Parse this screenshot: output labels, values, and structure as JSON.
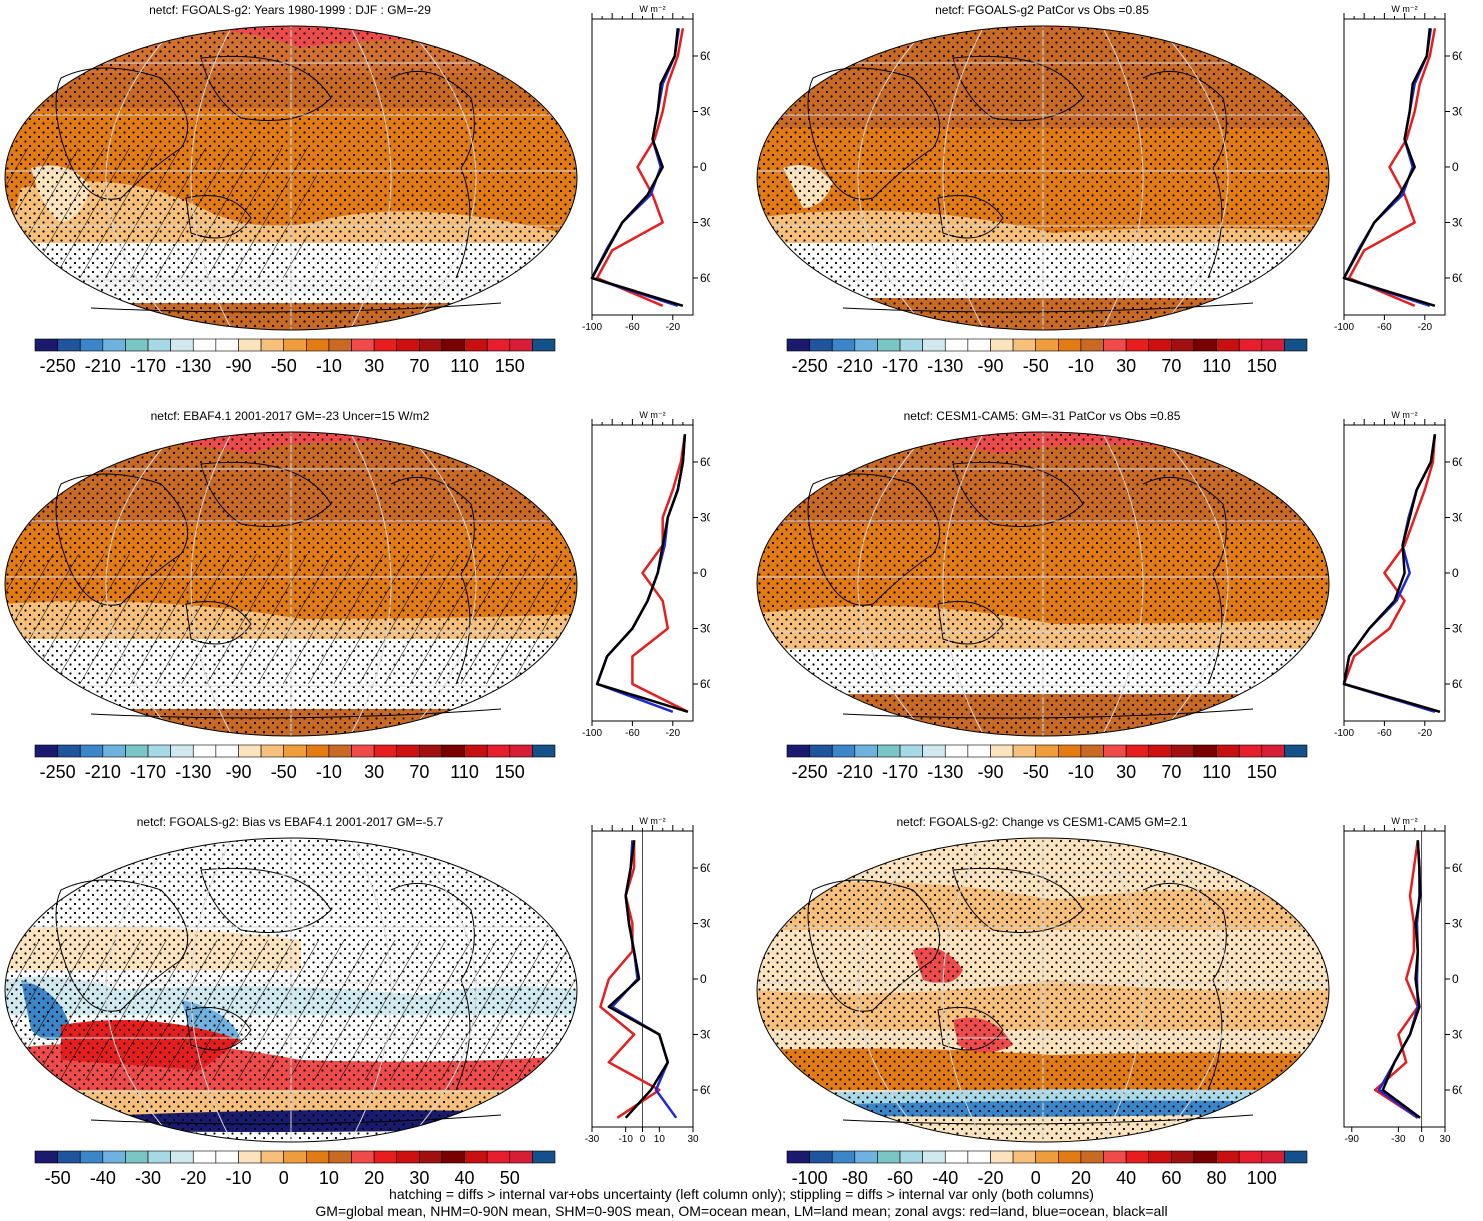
{
  "panels": [
    {
      "title": "netcf: FGOALS-g2: Years 1980-1999 : DJF : GM=-29"
    },
    {
      "title": "netcf: FGOALS-g2 PatCor vs Obs =0.85"
    },
    {
      "title": "netcf: EBAF4.1 2001-2017 GM=-23 Uncer=15 W/m2"
    },
    {
      "title": "netcf: CESM1-CAM5: GM=-31 PatCor vs Obs =0.85"
    },
    {
      "title": "netcf: FGOALS-g2: Bias vs EBAF4.1 2001-2017 GM=-5.7"
    },
    {
      "title": "netcf: FGOALS-g2: Change vs CESM1-CAM5 GM=2.1"
    }
  ],
  "colorbars": {
    "abs": {
      "labels": [
        "-250",
        "-210",
        "-170",
        "-130",
        "-90",
        "-50",
        "-10",
        "30",
        "70",
        "110",
        "150"
      ]
    },
    "bias": {
      "labels": [
        "-50",
        "-40",
        "-30",
        "-20",
        "-10",
        "0",
        "10",
        "20",
        "30",
        "40",
        "50"
      ]
    },
    "change": {
      "labels": [
        "-100",
        "-80",
        "-60",
        "-40",
        "-20",
        "0",
        "20",
        "40",
        "60",
        "80",
        "100"
      ]
    },
    "colors": [
      "#1a1a6e",
      "#20549c",
      "#3a86c8",
      "#6fb2e0",
      "#7ac6c4",
      "#a6d8e6",
      "#cfe9ef",
      "#ffffff",
      "#ffffff",
      "#fbe3bd",
      "#f6c07a",
      "#ef9d3c",
      "#e37b14",
      "#c96a24",
      "#f04a4a",
      "#e81e1e",
      "#d01010",
      "#a01010",
      "#7a0000",
      "#c81010",
      "#e81e2e",
      "#d81e36",
      "#14508a"
    ]
  },
  "zonal": {
    "unit": "W m⁻²",
    "lat_labels": [
      "60N",
      "30N",
      "0",
      "30S",
      "60S"
    ],
    "abs_ticks": [
      "-100",
      "-60",
      "-20"
    ],
    "bias_ticks": [
      "-30",
      "-10",
      "0",
      "10",
      "30"
    ],
    "change_ticks": [
      "-90",
      "-30",
      "0",
      "30"
    ]
  },
  "chart_data": [
    {
      "type": "heatmap",
      "title": "netcf: FGOALS-g2: Years 1980-1999 : DJF : GM=-29",
      "lat": [
        75,
        60,
        45,
        30,
        15,
        0,
        -15,
        -30,
        -45,
        -60,
        -75
      ],
      "zonal_all": [
        -15,
        -18,
        -32,
        -35,
        -40,
        -30,
        -45,
        -70,
        -85,
        -100,
        -10
      ],
      "zonal_land": [
        -10,
        -15,
        -25,
        -30,
        -38,
        -55,
        -40,
        -30,
        -80,
        -95,
        -30
      ],
      "zonal_ocean": [
        -14,
        -18,
        -30,
        -35,
        -40,
        -32,
        -42,
        -70,
        -86,
        -100,
        -15
      ],
      "x_range": [
        -100,
        0
      ]
    },
    {
      "type": "heatmap",
      "title": "netcf: FGOALS-g2 PatCor vs Obs =0.85",
      "lat": [
        75,
        60,
        45,
        30,
        15,
        0,
        -15,
        -30,
        -45,
        -60,
        -75
      ],
      "zonal_all": [
        -15,
        -18,
        -32,
        -35,
        -40,
        -30,
        -45,
        -70,
        -85,
        -100,
        -10
      ],
      "zonal_land": [
        -10,
        -15,
        -25,
        -30,
        -38,
        -55,
        -40,
        -30,
        -80,
        -95,
        -30
      ],
      "zonal_ocean": [
        -14,
        -18,
        -30,
        -35,
        -40,
        -32,
        -42,
        -70,
        -86,
        -100,
        -15
      ],
      "x_range": [
        -100,
        0
      ]
    },
    {
      "type": "heatmap",
      "title": "netcf: EBAF4.1 2001-2017 GM=-23 Uncer=15 W/m2",
      "lat": [
        75,
        60,
        45,
        30,
        15,
        0,
        -15,
        -30,
        -45,
        -60,
        -75
      ],
      "zonal_all": [
        -8,
        -10,
        -15,
        -25,
        -30,
        -35,
        -45,
        -60,
        -85,
        -95,
        -5
      ],
      "zonal_land": [
        -8,
        -12,
        -20,
        -30,
        -30,
        -50,
        -30,
        -25,
        -60,
        -60,
        -5
      ],
      "zonal_ocean": [
        -8,
        -10,
        -15,
        -25,
        -28,
        -35,
        -45,
        -60,
        -85,
        -95,
        -20
      ],
      "x_range": [
        -100,
        0
      ]
    },
    {
      "type": "heatmap",
      "title": "netcf: CESM1-CAM5: GM=-31 PatCor vs Obs =0.85",
      "lat": [
        75,
        60,
        45,
        30,
        15,
        0,
        -15,
        -30,
        -45,
        -60,
        -75
      ],
      "zonal_all": [
        -10,
        -14,
        -28,
        -35,
        -42,
        -40,
        -50,
        -75,
        -95,
        -100,
        -5
      ],
      "zonal_land": [
        -10,
        -12,
        -20,
        -30,
        -40,
        -60,
        -40,
        -55,
        -90,
        -100,
        -5
      ],
      "zonal_ocean": [
        -10,
        -14,
        -28,
        -36,
        -42,
        -35,
        -48,
        -75,
        -95,
        -100,
        -10
      ],
      "x_range": [
        -100,
        0
      ]
    },
    {
      "type": "heatmap",
      "title": "netcf: FGOALS-g2: Bias vs EBAF4.1 2001-2017 GM=-5.7",
      "lat": [
        75,
        60,
        45,
        30,
        15,
        0,
        -15,
        -30,
        -45,
        -60,
        -75
      ],
      "zonal_all": [
        -5,
        -7,
        -10,
        -8,
        -5,
        -2,
        -20,
        10,
        15,
        5,
        -10
      ],
      "zonal_land": [
        -5,
        -5,
        -10,
        -6,
        -6,
        -20,
        -25,
        -5,
        -20,
        10,
        -15
      ],
      "zonal_ocean": [
        -6,
        -7,
        -10,
        -8,
        -5,
        -3,
        -18,
        10,
        15,
        8,
        20
      ],
      "x_range": [
        -30,
        30
      ]
    },
    {
      "type": "heatmap",
      "title": "netcf: FGOALS-g2: Change vs CESM1-CAM5 GM=2.1",
      "lat": [
        75,
        60,
        45,
        30,
        15,
        0,
        -15,
        -30,
        -45,
        -60,
        -75
      ],
      "zonal_all": [
        -5,
        -3,
        -2,
        -8,
        -5,
        -8,
        -3,
        -15,
        -35,
        -50,
        -2
      ],
      "zonal_land": [
        -5,
        -10,
        -15,
        -10,
        -10,
        -20,
        -5,
        -30,
        -20,
        -60,
        -5
      ],
      "zonal_ocean": [
        -5,
        -3,
        -3,
        -6,
        -5,
        -6,
        -5,
        -15,
        -35,
        -55,
        -5
      ],
      "x_range": [
        -100,
        30
      ]
    }
  ],
  "footer": {
    "line1": "hatching = diffs > internal var+obs uncertainty (left column only); stippling = diffs > internal var only (both columns)",
    "line2": "GM=global mean, NHM=0-90N mean, SHM=0-90S mean, OM=ocean mean, LM=land mean; zonal avgs: red=land, blue=ocean, black=all"
  }
}
